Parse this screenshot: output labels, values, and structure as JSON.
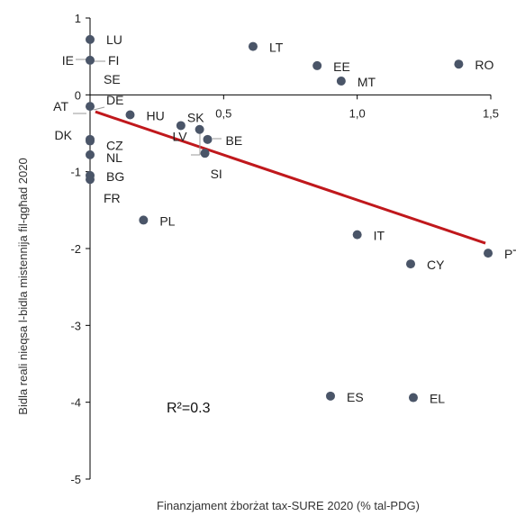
{
  "chart_data": {
    "type": "scatter",
    "xlabel": "Finanzjament żborżat tax-SURE 2020 (% tal-PDG)",
    "ylabel": "Bidla reali nieqsa l-bidla mistennija fil-qgħad 2020",
    "xlim": [
      0,
      1.5
    ],
    "ylim": [
      -5,
      1
    ],
    "x_ticks": [
      {
        "value": 0.5,
        "label": "0,5"
      },
      {
        "value": 1.0,
        "label": "1,0"
      },
      {
        "value": 1.5,
        "label": "1,5"
      }
    ],
    "y_ticks": [
      {
        "value": 1,
        "label": "1"
      },
      {
        "value": 0,
        "label": "0"
      },
      {
        "value": -1,
        "label": "-1"
      },
      {
        "value": -2,
        "label": "-2"
      },
      {
        "value": -3,
        "label": "-3"
      },
      {
        "value": -4,
        "label": "-4"
      },
      {
        "value": -5,
        "label": "-5"
      }
    ],
    "points": [
      {
        "label": "LU",
        "x": 0.0,
        "y": 0.72
      },
      {
        "label": "IE",
        "x": 0.0,
        "y": 0.45
      },
      {
        "label": "FI",
        "x": 0.0,
        "y": 0.45
      },
      {
        "label": "SE",
        "x": 0.0,
        "y": 0.45
      },
      {
        "label": "AT",
        "x": 0.0,
        "y": -0.15
      },
      {
        "label": "DE",
        "x": 0.0,
        "y": -0.15
      },
      {
        "label": "DK",
        "x": 0.0,
        "y": -0.58
      },
      {
        "label": "CZ",
        "x": 0.0,
        "y": -0.6
      },
      {
        "label": "NL",
        "x": 0.0,
        "y": -0.78
      },
      {
        "label": "BG",
        "x": 0.0,
        "y": -1.05
      },
      {
        "label": "FR",
        "x": 0.0,
        "y": -1.1
      },
      {
        "label": "HU",
        "x": 0.15,
        "y": -0.26
      },
      {
        "label": "SK",
        "x": 0.34,
        "y": -0.4
      },
      {
        "label": "BE",
        "x": 0.44,
        "y": -0.58
      },
      {
        "label": "LV",
        "x": 0.41,
        "y": -0.45
      },
      {
        "label": "SI",
        "x": 0.43,
        "y": -0.76
      },
      {
        "label": "PL",
        "x": 0.2,
        "y": -1.63
      },
      {
        "label": "LT",
        "x": 0.61,
        "y": 0.63
      },
      {
        "label": "EE",
        "x": 0.85,
        "y": 0.38
      },
      {
        "label": "MT",
        "x": 0.94,
        "y": 0.18
      },
      {
        "label": "RO",
        "x": 1.38,
        "y": 0.4
      },
      {
        "label": "IT",
        "x": 1.0,
        "y": -1.82
      },
      {
        "label": "CY",
        "x": 1.2,
        "y": -2.2
      },
      {
        "label": "PT",
        "x": 1.49,
        "y": -2.06
      },
      {
        "label": "ES",
        "x": 0.9,
        "y": -3.92
      },
      {
        "label": "EL",
        "x": 1.21,
        "y": -3.94
      }
    ],
    "trendline": {
      "x": [
        0.02,
        1.48
      ],
      "y": [
        -0.22,
        -1.93
      ]
    },
    "r_squared": "R²=0.3",
    "marker_color": "#4a5568",
    "trend_color": "#c0181c"
  }
}
